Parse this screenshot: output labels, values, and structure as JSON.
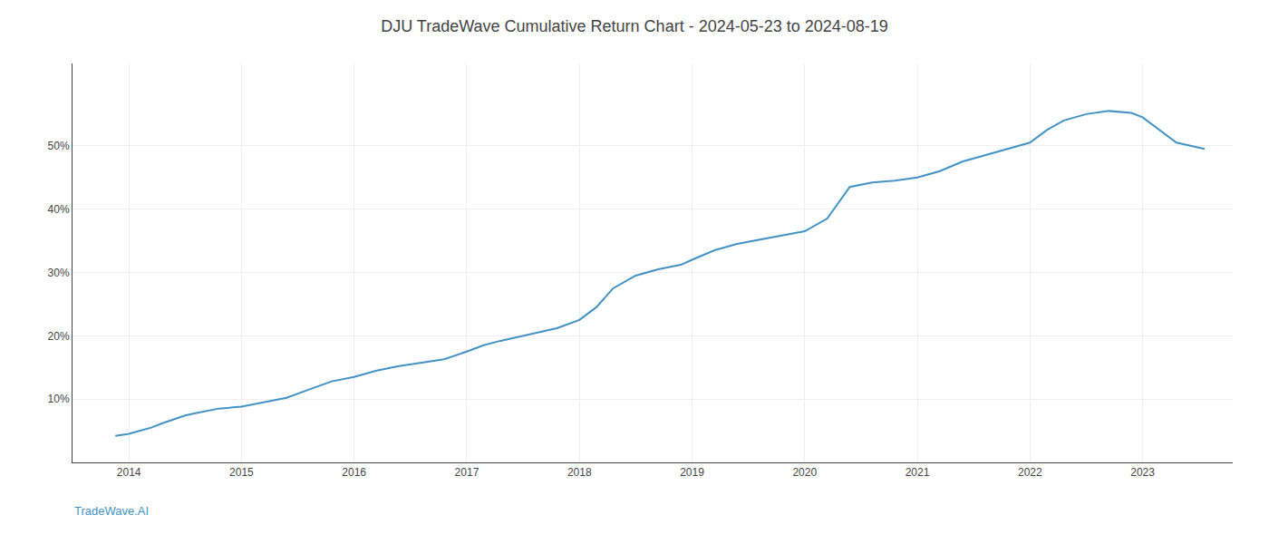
{
  "chart_data": {
    "type": "line",
    "title": "DJU TradeWave Cumulative Return Chart - 2024-05-23 to 2024-08-19",
    "annotations": [
      "TradeWave.AI"
    ],
    "color": "#4393c4",
    "grid": true,
    "x": [
      2013.88,
      2014.0,
      2014.1,
      2014.2,
      2014.3,
      2014.4,
      2014.5,
      2014.6,
      2014.7,
      2014.8,
      2015.0,
      2015.2,
      2015.4,
      2015.6,
      2015.8,
      2016.0,
      2016.2,
      2016.4,
      2016.6,
      2016.8,
      2017.0,
      2017.15,
      2017.3,
      2017.5,
      2017.65,
      2017.8,
      2018.0,
      2018.15,
      2018.3,
      2018.5,
      2018.7,
      2018.9,
      2019.0,
      2019.2,
      2019.4,
      2019.6,
      2019.8,
      2020.0,
      2020.2,
      2020.4,
      2020.6,
      2020.8,
      2021.0,
      2021.2,
      2021.4,
      2021.6,
      2021.8,
      2022.0,
      2022.15,
      2022.3,
      2022.5,
      2022.7,
      2022.9,
      2023.0,
      2023.3,
      2023.55
    ],
    "values": [
      4.2,
      4.5,
      5.0,
      5.5,
      6.2,
      6.8,
      7.4,
      7.8,
      8.2,
      8.5,
      8.8,
      9.5,
      10.2,
      11.5,
      12.8,
      13.5,
      14.5,
      15.2,
      15.8,
      16.3,
      17.5,
      18.5,
      19.2,
      20.0,
      20.5,
      21.2,
      22.5,
      24.5,
      27.5,
      29.5,
      30.5,
      31.2,
      32.0,
      33.5,
      34.5,
      35.2,
      35.8,
      36.5,
      38.5,
      43.5,
      44.2,
      44.5,
      45.0,
      46.0,
      47.5,
      48.5,
      49.5,
      50.5,
      52.5,
      54.0,
      55.0,
      55.5,
      55.2,
      54.5,
      50.5,
      49.5
    ],
    "xlim": [
      2013.5,
      2023.8
    ],
    "xticks": [
      2014,
      2015,
      2016,
      2017,
      2018,
      2019,
      2020,
      2021,
      2022,
      2023
    ],
    "ylim": [
      0,
      63
    ],
    "yticks": [
      {
        "value": 10,
        "label": "10%"
      },
      {
        "value": 20,
        "label": "20%"
      },
      {
        "value": 30,
        "label": "30%"
      },
      {
        "value": 40,
        "label": "40%"
      },
      {
        "value": 50,
        "label": "50%"
      }
    ]
  }
}
